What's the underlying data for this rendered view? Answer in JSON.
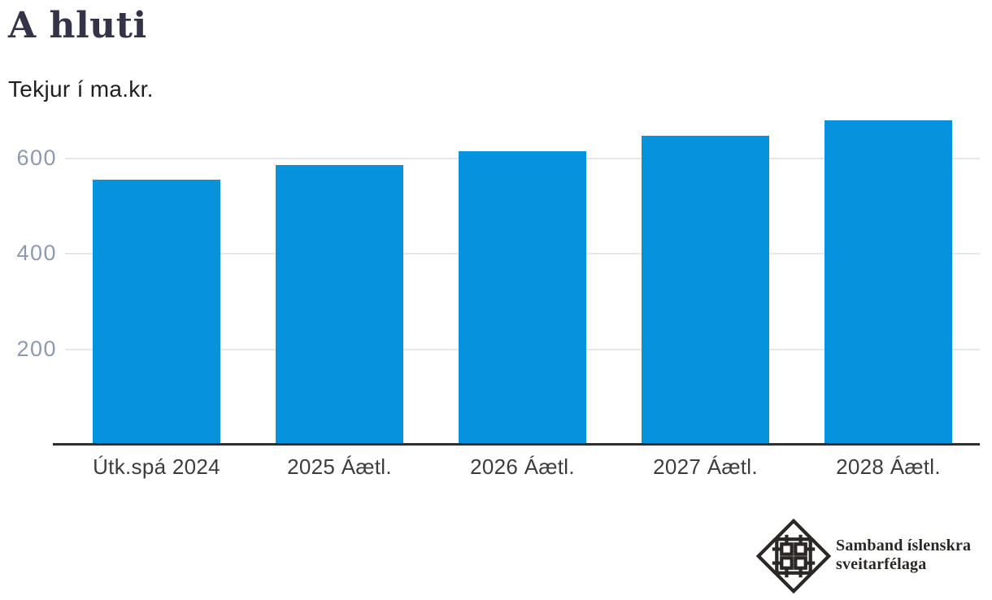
{
  "chart_data": {
    "type": "bar",
    "title": "A hluti",
    "subtitle": "Tekjur í ma.kr.",
    "categories": [
      "Útk.spá 2024",
      "2025 Áætl.",
      "2026 Áætl.",
      "2027 Áætl.",
      "2028 Áætl."
    ],
    "values": [
      556,
      587,
      615,
      648,
      680
    ],
    "xlabel": "",
    "ylabel": "",
    "yticks": [
      200,
      400,
      600
    ],
    "ylim": [
      0,
      694
    ],
    "grid": true,
    "legend": "none",
    "bar_color": "#0692dd"
  },
  "colors": {
    "background": "#ffffff",
    "bar": "#0692dd",
    "title": "#343347",
    "subtitle": "#1f1f1f",
    "y_tick": "#8d9aae",
    "x_tick": "#3d3d3d",
    "gridline": "#e7e7e7",
    "axis_line": "#2e2e2e",
    "logo": "#2a2725"
  },
  "logo": {
    "name_line1": "Samband íslenskra",
    "name_line2": "sveitarfélaga",
    "emblem": "samband-knot-emblem"
  }
}
